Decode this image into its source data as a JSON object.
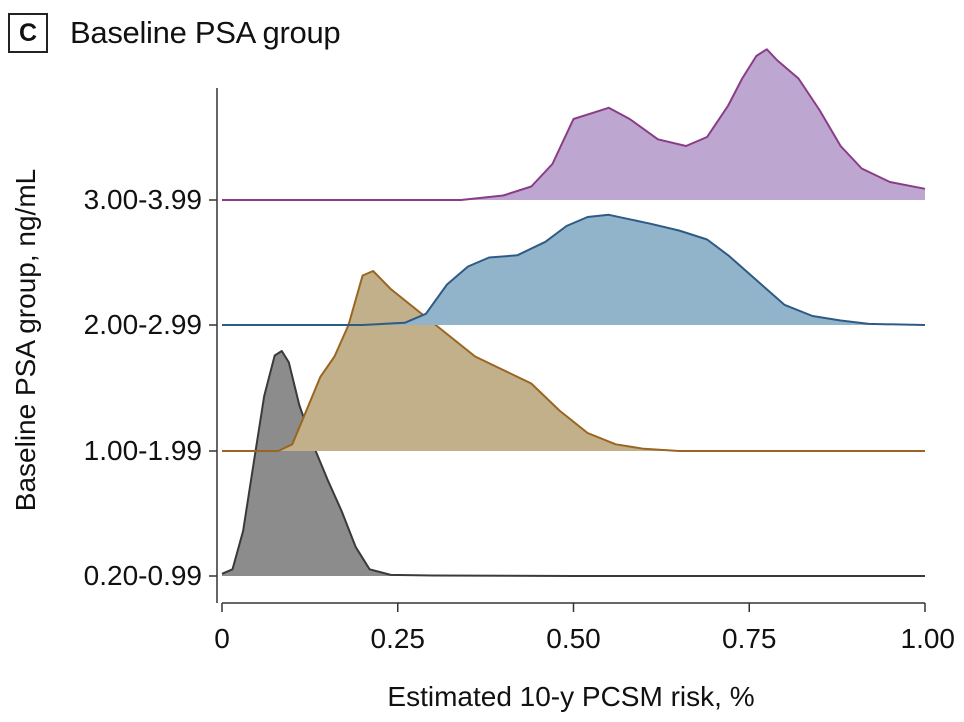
{
  "panel": {
    "badge": "C",
    "title": "Baseline PSA group"
  },
  "chart_data": {
    "type": "ridgeline",
    "title": "Baseline PSA group",
    "xlabel": "Estimated 10-y PCSM risk, %",
    "ylabel": "Baseline PSA group, ng/mL",
    "xlim": [
      0,
      1
    ],
    "xticks": [
      "0",
      "0.25",
      "0.50",
      "0.75",
      "1.00"
    ],
    "xtick_values": [
      0,
      0.25,
      0.5,
      0.75,
      1.0
    ],
    "series": [
      {
        "name": "0.20-0.99",
        "fill": "#8c8c8c",
        "stroke": "#3a3a3a",
        "points": [
          [
            0,
            0.01
          ],
          [
            0.015,
            0.03
          ],
          [
            0.03,
            0.2
          ],
          [
            0.045,
            0.5
          ],
          [
            0.06,
            0.8
          ],
          [
            0.075,
            0.98
          ],
          [
            0.085,
            1.0
          ],
          [
            0.095,
            0.95
          ],
          [
            0.11,
            0.76
          ],
          [
            0.13,
            0.58
          ],
          [
            0.15,
            0.43
          ],
          [
            0.17,
            0.29
          ],
          [
            0.19,
            0.13
          ],
          [
            0.21,
            0.03
          ],
          [
            0.24,
            0.005
          ],
          [
            0.3,
            0.002
          ],
          [
            0.5,
            0.0
          ],
          [
            1.0,
            0.0
          ]
        ]
      },
      {
        "name": "1.00-1.99",
        "fill": "#c2b08a",
        "stroke": "#9a6520",
        "points": [
          [
            0,
            0.0
          ],
          [
            0.08,
            0.0
          ],
          [
            0.1,
            0.03
          ],
          [
            0.12,
            0.18
          ],
          [
            0.14,
            0.33
          ],
          [
            0.16,
            0.42
          ],
          [
            0.18,
            0.56
          ],
          [
            0.2,
            0.78
          ],
          [
            0.215,
            0.8
          ],
          [
            0.24,
            0.72
          ],
          [
            0.28,
            0.62
          ],
          [
            0.32,
            0.52
          ],
          [
            0.36,
            0.42
          ],
          [
            0.4,
            0.36
          ],
          [
            0.44,
            0.3
          ],
          [
            0.48,
            0.18
          ],
          [
            0.52,
            0.08
          ],
          [
            0.56,
            0.03
          ],
          [
            0.6,
            0.01
          ],
          [
            0.65,
            0.0
          ],
          [
            1.0,
            0.0
          ]
        ]
      },
      {
        "name": "2.00-2.99",
        "fill": "#92b4cb",
        "stroke": "#2e5a86",
        "points": [
          [
            0,
            0.0
          ],
          [
            0.2,
            0.0
          ],
          [
            0.26,
            0.01
          ],
          [
            0.29,
            0.05
          ],
          [
            0.32,
            0.18
          ],
          [
            0.35,
            0.26
          ],
          [
            0.38,
            0.3
          ],
          [
            0.42,
            0.31
          ],
          [
            0.46,
            0.37
          ],
          [
            0.49,
            0.44
          ],
          [
            0.52,
            0.48
          ],
          [
            0.55,
            0.49
          ],
          [
            0.58,
            0.47
          ],
          [
            0.61,
            0.45
          ],
          [
            0.65,
            0.42
          ],
          [
            0.69,
            0.38
          ],
          [
            0.72,
            0.31
          ],
          [
            0.76,
            0.2
          ],
          [
            0.8,
            0.09
          ],
          [
            0.84,
            0.04
          ],
          [
            0.88,
            0.02
          ],
          [
            0.92,
            0.005
          ],
          [
            1.0,
            0.0
          ]
        ]
      },
      {
        "name": "3.00-3.99",
        "fill": "#bda7d1",
        "stroke": "#8a3c88",
        "points": [
          [
            0,
            0.0
          ],
          [
            0.34,
            0.0
          ],
          [
            0.4,
            0.02
          ],
          [
            0.44,
            0.06
          ],
          [
            0.47,
            0.16
          ],
          [
            0.5,
            0.36
          ],
          [
            0.53,
            0.39
          ],
          [
            0.55,
            0.41
          ],
          [
            0.58,
            0.36
          ],
          [
            0.62,
            0.27
          ],
          [
            0.66,
            0.24
          ],
          [
            0.69,
            0.28
          ],
          [
            0.72,
            0.42
          ],
          [
            0.74,
            0.54
          ],
          [
            0.76,
            0.64
          ],
          [
            0.775,
            0.67
          ],
          [
            0.79,
            0.62
          ],
          [
            0.82,
            0.54
          ],
          [
            0.85,
            0.4
          ],
          [
            0.88,
            0.24
          ],
          [
            0.91,
            0.14
          ],
          [
            0.95,
            0.08
          ],
          [
            1.0,
            0.05
          ]
        ]
      }
    ]
  }
}
